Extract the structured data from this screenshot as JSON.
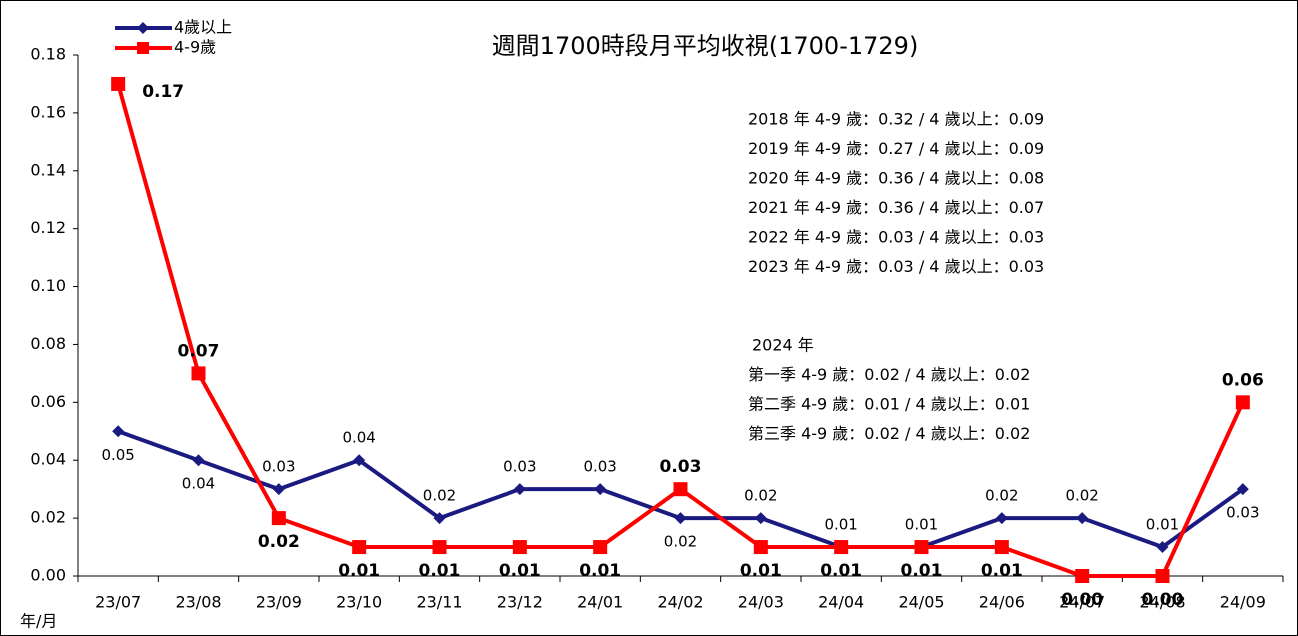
{
  "chart_data": {
    "type": "line",
    "title": "週間1700時段月平均收視(1700-1729)",
    "x_label": "年/月",
    "categories": [
      "23/07",
      "23/08",
      "23/09",
      "23/10",
      "23/11",
      "23/12",
      "24/01",
      "24/02",
      "24/03",
      "24/04",
      "24/05",
      "24/06",
      "24/07",
      "24/08",
      "24/09"
    ],
    "series": [
      {
        "name": "4歲以上",
        "color": "#1a1a80",
        "marker": "diamond",
        "values": [
          0.05,
          0.04,
          0.03,
          0.04,
          0.02,
          0.03,
          0.03,
          0.02,
          0.02,
          0.01,
          0.01,
          0.02,
          0.02,
          0.01,
          0.03
        ],
        "value_labels": [
          "0.05",
          "0.04",
          "0.03",
          "0.04",
          "0.02",
          "0.03",
          "0.03",
          "0.02",
          "0.02",
          "0.01",
          "0.01",
          "0.02",
          "0.02",
          "0.01",
          "0.03"
        ]
      },
      {
        "name": "4-9歲",
        "color": "#ff0000",
        "marker": "square",
        "values": [
          0.17,
          0.07,
          0.02,
          0.01,
          0.01,
          0.01,
          0.01,
          0.03,
          0.01,
          0.01,
          0.01,
          0.01,
          0.0,
          0.0,
          0.06
        ],
        "value_labels": [
          "0.17",
          "0.07",
          "0.02",
          "0.01",
          "0.01",
          "0.01",
          "0.01",
          "0.03",
          "0.01",
          "0.01",
          "0.01",
          "0.01",
          "0.00",
          "0.00",
          "0.06"
        ]
      }
    ],
    "ylim": [
      0,
      0.18
    ],
    "yticks": [
      {
        "value": 0,
        "label": "0.00"
      },
      {
        "value": 0.02,
        "label": "0.02"
      },
      {
        "value": 0.04,
        "label": "0.04"
      },
      {
        "value": 0.06,
        "label": "0.06"
      },
      {
        "value": 0.08,
        "label": "0.08"
      },
      {
        "value": 0.1,
        "label": "0.10"
      },
      {
        "value": 0.12,
        "label": "0.12"
      },
      {
        "value": 0.14,
        "label": "0.14"
      },
      {
        "value": 0.16,
        "label": "0.16"
      },
      {
        "value": 0.18,
        "label": "0.18"
      }
    ],
    "legend": "upper left",
    "annotations": [
      "2018 年 4-9 歲：0.32 / 4 歲以上：0.09",
      "2019 年 4-9 歲：0.27 / 4 歲以上：0.09",
      "2020 年 4-9 歲：0.36 / 4 歲以上：0.08",
      "2021 年 4-9 歲：0.36 / 4 歲以上：0.07",
      "2022 年 4-9 歲：0.03 / 4 歲以上：0.03",
      "2023 年 4-9 歲：0.03 / 4 歲以上：0.03"
    ],
    "annotations_2024": [
      "2024 年",
      "第一季 4-9 歲：0.02 / 4 歲以上：0.02",
      "第二季 4-9 歲：0.01 / 4 歲以上：0.01",
      "第三季 4-9 歲：0.02 / 4 歲以上：0.02"
    ]
  }
}
